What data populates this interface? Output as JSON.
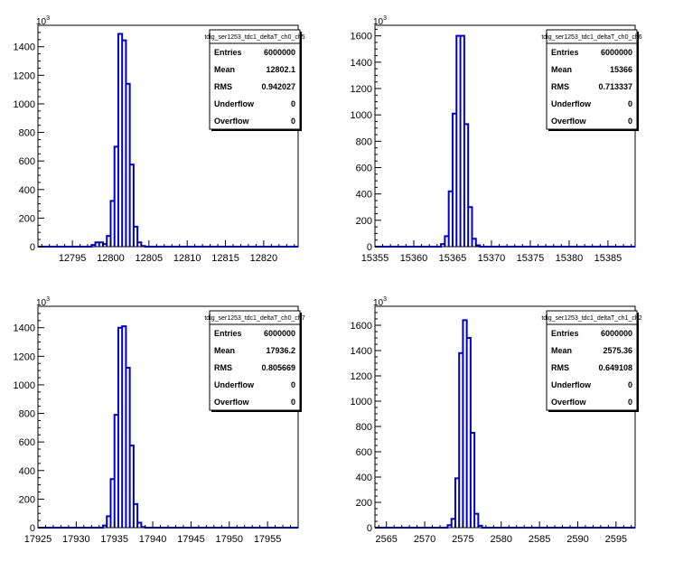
{
  "chart_data": [
    {
      "type": "histogram",
      "stats": {
        "title": "tdig_ser1253_tdc1_deltaT_ch0_ch5",
        "rows": [
          {
            "label": "Entries",
            "value": "6000000"
          },
          {
            "label": "Mean",
            "value": "12802.1"
          },
          {
            "label": "RMS",
            "value": "0.942027"
          },
          {
            "label": "Underflow",
            "value": "0"
          },
          {
            "label": "Overflow",
            "value": "0"
          }
        ]
      },
      "xlim": [
        12790.5,
        12824.5
      ],
      "ylim": [
        0,
        1550
      ],
      "y_exponent": "10",
      "y_exponent_power": "3",
      "xticks": [
        12795,
        12800,
        12805,
        12810,
        12815,
        12820
      ],
      "xtick_labels": [
        "12795",
        "12800",
        "12805",
        "12810",
        "12815",
        "12820"
      ],
      "yticks": [
        0,
        200,
        400,
        600,
        800,
        1000,
        1200,
        1400
      ],
      "ytick_labels": [
        "0",
        "200",
        "400",
        "600",
        "800",
        "1000",
        "1200",
        "1400"
      ],
      "bin_width": 0.5,
      "bins": [
        [
          12797.5,
          12
        ],
        [
          12798.0,
          30
        ],
        [
          12798.5,
          30
        ],
        [
          12799.0,
          18
        ],
        [
          12799.5,
          75
        ],
        [
          12800.0,
          320
        ],
        [
          12800.5,
          700
        ],
        [
          12801.0,
          1490
        ],
        [
          12801.5,
          1445
        ],
        [
          12802.0,
          1140
        ],
        [
          12802.5,
          575
        ],
        [
          12803.0,
          140
        ],
        [
          12803.5,
          30
        ],
        [
          12804.0,
          5
        ]
      ]
    },
    {
      "type": "histogram",
      "stats": {
        "title": "tdig_ser1253_tdc1_deltaT_ch0_ch6",
        "rows": [
          {
            "label": "Entries",
            "value": "6000000"
          },
          {
            "label": "Mean",
            "value": "15366"
          },
          {
            "label": "RMS",
            "value": "0.713337"
          },
          {
            "label": "Underflow",
            "value": "0"
          },
          {
            "label": "Overflow",
            "value": "0"
          }
        ]
      },
      "xlim": [
        15355,
        15388.5
      ],
      "ylim": [
        0,
        1680
      ],
      "y_exponent": "10",
      "y_exponent_power": "3",
      "xticks": [
        15355,
        15360,
        15365,
        15370,
        15375,
        15380,
        15385
      ],
      "xtick_labels": [
        "15355",
        "15360",
        "15365",
        "15370",
        "15375",
        "15380",
        "15385"
      ],
      "yticks": [
        0,
        200,
        400,
        600,
        800,
        1000,
        1200,
        1400,
        1600
      ],
      "ytick_labels": [
        "0",
        "200",
        "400",
        "600",
        "800",
        "1000",
        "1200",
        "1400",
        "1600"
      ],
      "bin_width": 0.5,
      "bins": [
        [
          15363.5,
          20
        ],
        [
          15364.0,
          80
        ],
        [
          15364.5,
          420
        ],
        [
          15365.0,
          1010
        ],
        [
          15365.5,
          1600
        ],
        [
          15366.0,
          1600
        ],
        [
          15366.5,
          930
        ],
        [
          15367.0,
          300
        ],
        [
          15367.5,
          60
        ],
        [
          15368.0,
          10
        ]
      ]
    },
    {
      "type": "histogram",
      "stats": {
        "title": "tdig_ser1253_tdc1_deltaT_ch0_ch7",
        "rows": [
          {
            "label": "Entries",
            "value": "6000000"
          },
          {
            "label": "Mean",
            "value": "17936.2"
          },
          {
            "label": "RMS",
            "value": "0.805669"
          },
          {
            "label": "Underflow",
            "value": "0"
          },
          {
            "label": "Overflow",
            "value": "0"
          }
        ]
      },
      "xlim": [
        17925,
        17959
      ],
      "ylim": [
        0,
        1550
      ],
      "y_exponent": "10",
      "y_exponent_power": "3",
      "xticks": [
        17925,
        17930,
        17935,
        17940,
        17945,
        17950,
        17955
      ],
      "xtick_labels": [
        "17925",
        "17930",
        "17935",
        "17940",
        "17945",
        "17950",
        "17955"
      ],
      "yticks": [
        0,
        200,
        400,
        600,
        800,
        1000,
        1200,
        1400
      ],
      "ytick_labels": [
        "0",
        "200",
        "400",
        "600",
        "800",
        "1000",
        "1200",
        "1400"
      ],
      "bin_width": 0.5,
      "bins": [
        [
          17933.5,
          15
        ],
        [
          17934.0,
          80
        ],
        [
          17934.5,
          340
        ],
        [
          17935.0,
          790
        ],
        [
          17935.5,
          1400
        ],
        [
          17936.0,
          1410
        ],
        [
          17936.5,
          1120
        ],
        [
          17937.0,
          575
        ],
        [
          17937.5,
          165
        ],
        [
          17938.0,
          35
        ],
        [
          17938.5,
          5
        ]
      ]
    },
    {
      "type": "histogram",
      "stats": {
        "title": "tdig_ser1253_tdc1_deltaT_ch1_ch2",
        "rows": [
          {
            "label": "Entries",
            "value": "6000000"
          },
          {
            "label": "Mean",
            "value": "2575.36"
          },
          {
            "label": "RMS",
            "value": "0.649108"
          },
          {
            "label": "Underflow",
            "value": "0"
          },
          {
            "label": "Overflow",
            "value": "0"
          }
        ]
      },
      "xlim": [
        2563.5,
        2597.5
      ],
      "ylim": [
        0,
        1750
      ],
      "y_exponent": "10",
      "y_exponent_power": "3",
      "xticks": [
        2565,
        2570,
        2575,
        2580,
        2585,
        2590,
        2595
      ],
      "xtick_labels": [
        "2565",
        "2570",
        "2575",
        "2580",
        "2585",
        "2590",
        "2595"
      ],
      "yticks": [
        0,
        200,
        400,
        600,
        800,
        1000,
        1200,
        1400,
        1600
      ],
      "ytick_labels": [
        "0",
        "200",
        "400",
        "600",
        "800",
        "1000",
        "1200",
        "1400",
        "1600"
      ],
      "bin_width": 0.5,
      "bins": [
        [
          2573.0,
          20
        ],
        [
          2573.5,
          70
        ],
        [
          2574.0,
          390
        ],
        [
          2574.5,
          1380
        ],
        [
          2575.0,
          1640
        ],
        [
          2575.5,
          1500
        ],
        [
          2576.0,
          750
        ],
        [
          2576.5,
          110
        ],
        [
          2577.0,
          15
        ]
      ]
    }
  ],
  "colors": {
    "histogram_line": "#0000cc",
    "axes": "#000000"
  }
}
